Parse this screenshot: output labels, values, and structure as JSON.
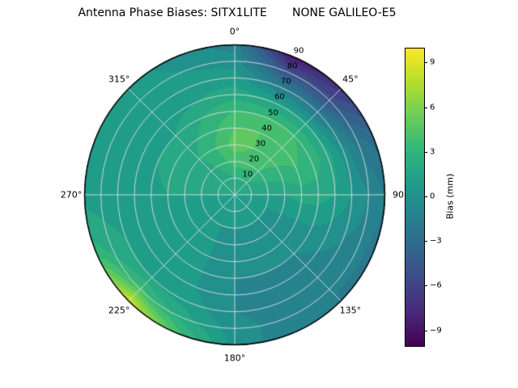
{
  "title": "Antenna Phase Biases: SITX1LITE       NONE GALILEO-E5",
  "chart_data": {
    "type": "heatmap",
    "projection": "polar",
    "title": "Antenna Phase Biases: SITX1LITE       NONE GALILEO-E5",
    "grid": true,
    "theta_direction": "clockwise",
    "theta_zero": "top",
    "theta_ticks": [
      {
        "angle": 0,
        "label": "0°"
      },
      {
        "angle": 45,
        "label": "45°"
      },
      {
        "angle": 90,
        "label": "90"
      },
      {
        "angle": 135,
        "label": "135°"
      },
      {
        "angle": 180,
        "label": "180°"
      },
      {
        "angle": 225,
        "label": "225°"
      },
      {
        "angle": 270,
        "label": "270°"
      },
      {
        "angle": 315,
        "label": "315°"
      }
    ],
    "radial_ticks": [
      10,
      20,
      30,
      40,
      50,
      60,
      70,
      80,
      90
    ],
    "azimuth_deg": [
      0,
      22.5,
      45,
      67.5,
      90,
      112.5,
      135,
      157.5,
      180,
      202.5,
      225,
      247.5,
      270,
      292.5,
      315,
      337.5
    ],
    "zenith_deg": [
      0,
      10,
      20,
      30,
      40,
      50,
      60,
      70,
      80,
      90
    ],
    "values": [
      [
        1.5,
        1.5,
        1.5,
        1.5,
        1.5,
        1.5,
        1.5,
        1.5,
        1.5,
        1.5,
        1.5,
        1.5,
        1.5,
        1.5,
        1.5,
        1.5
      ],
      [
        2.5,
        2.5,
        2.5,
        2.0,
        1.5,
        1.0,
        1.0,
        1.0,
        1.0,
        1.0,
        1.0,
        1.0,
        1.5,
        1.5,
        2.0,
        2.0
      ],
      [
        4.0,
        4.0,
        3.5,
        2.5,
        1.5,
        0.5,
        0.5,
        0.5,
        0.5,
        0.5,
        1.0,
        1.0,
        1.5,
        1.5,
        2.0,
        3.0
      ],
      [
        5.0,
        4.5,
        4.0,
        3.0,
        1.5,
        0.5,
        0.0,
        0.0,
        0.0,
        0.5,
        1.0,
        1.0,
        1.5,
        2.0,
        2.5,
        3.5
      ],
      [
        4.5,
        4.5,
        4.0,
        3.5,
        2.0,
        0.5,
        -0.5,
        -0.5,
        0.0,
        0.5,
        1.0,
        1.0,
        1.5,
        2.0,
        2.0,
        3.0
      ],
      [
        3.5,
        3.5,
        3.5,
        3.0,
        2.0,
        0.5,
        -0.5,
        -0.5,
        -0.5,
        0.5,
        1.0,
        1.0,
        1.0,
        1.5,
        1.5,
        2.5
      ],
      [
        2.0,
        1.5,
        1.5,
        2.0,
        1.5,
        0.0,
        -1.0,
        -1.0,
        -0.5,
        0.5,
        1.0,
        1.0,
        1.0,
        1.0,
        1.0,
        1.5
      ],
      [
        1.0,
        -1.5,
        -2.0,
        0.0,
        0.5,
        -0.5,
        -1.0,
        -1.0,
        -0.5,
        1.0,
        1.5,
        1.5,
        1.0,
        1.0,
        1.0,
        1.0
      ],
      [
        0.0,
        -5.0,
        -5.0,
        -2.0,
        -0.5,
        -1.0,
        -1.5,
        -1.0,
        0.0,
        2.0,
        4.0,
        2.0,
        1.0,
        1.0,
        1.0,
        0.5
      ],
      [
        -1.0,
        -9.0,
        -7.0,
        -3.0,
        -1.5,
        -2.0,
        -1.5,
        -1.0,
        0.0,
        4.0,
        9.0,
        3.0,
        1.0,
        1.5,
        1.0,
        0.0
      ]
    ],
    "vmin": -10,
    "vmax": 10,
    "colormap": "viridis",
    "colormap_stops": [
      "#440154",
      "#482878",
      "#3e4a89",
      "#31688e",
      "#26828e",
      "#1f9e89",
      "#35b779",
      "#6ece58",
      "#b5de2b",
      "#fde725"
    ],
    "grid_color": "#dedede",
    "colorbar": {
      "label": "Bias (mm)",
      "ticks": [
        9,
        6,
        3,
        0,
        -3,
        -6,
        -9
      ],
      "tick_labels": [
        "9",
        "6",
        "3",
        "0",
        "−3",
        "−6",
        "−9"
      ]
    }
  }
}
